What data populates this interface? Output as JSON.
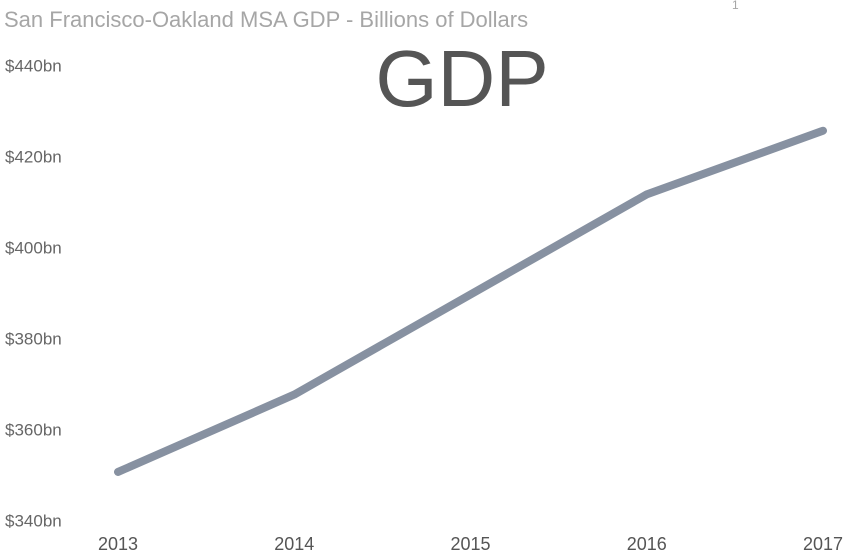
{
  "chart_data": {
    "type": "line",
    "title": "San Francisco-Oakland MSA GDP - Billions of Dollars",
    "title_note": "1",
    "annotation": "GDP",
    "categories": [
      "2013",
      "2014",
      "2015",
      "2016",
      "2017"
    ],
    "series": [
      {
        "name": "GDP",
        "color": "#8791a1",
        "values": [
          351,
          368,
          390,
          412,
          426
        ]
      }
    ],
    "ylim": [
      340,
      440
    ],
    "yticks": [
      {
        "value": 340,
        "label": "$340bn"
      },
      {
        "value": 360,
        "label": "$360bn"
      },
      {
        "value": 380,
        "label": "$380bn"
      },
      {
        "value": 400,
        "label": "$400bn"
      },
      {
        "value": 420,
        "label": "$420bn"
      },
      {
        "value": 440,
        "label": "$440bn"
      }
    ],
    "grid": false,
    "legend": false
  }
}
